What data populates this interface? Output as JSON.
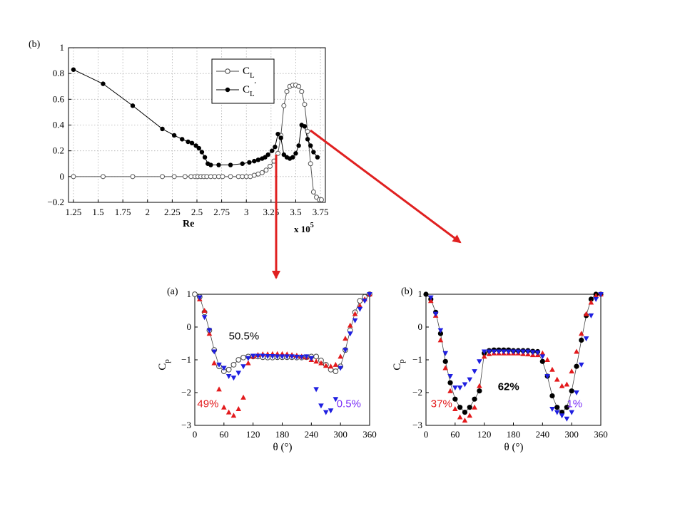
{
  "colors": {
    "annotation_red": "#e31a1c",
    "annotation_blue": "#1f1fe0",
    "annotation_purple": "#7b2ff7",
    "arrow": "#e02020",
    "grid": "#b0b0b0"
  },
  "chart_data": [
    {
      "type": "line",
      "panel_label": "(b)",
      "xlabel": "Re",
      "x_multiplier": "x 10",
      "x_multiplier_exponent": "5",
      "xlim": [
        1.2,
        3.8
      ],
      "ylim": [
        -0.2,
        1.0
      ],
      "xticks": [
        "1.25",
        "1.5",
        "1.75",
        "2",
        "2.25",
        "2.5",
        "2.75",
        "3",
        "3.25",
        "3.5",
        "3.75"
      ],
      "yticks": [
        "1",
        "0.8",
        "0.6",
        "0.4",
        "0.2",
        "0",
        "−0.2"
      ],
      "grid": true,
      "legend_position": "top-right",
      "series": [
        {
          "name": "C_L",
          "legend_main": "C",
          "legend_sub": "L",
          "marker": "open-circle",
          "x": [
            1.25,
            1.55,
            1.85,
            2.15,
            2.27,
            2.38,
            2.44,
            2.48,
            2.51,
            2.54,
            2.57,
            2.6,
            2.64,
            2.68,
            2.72,
            2.76,
            2.84,
            2.92,
            2.96,
            3.0,
            3.04,
            3.08,
            3.12,
            3.16,
            3.2,
            3.24,
            3.28,
            3.32,
            3.35,
            3.38,
            3.41,
            3.44,
            3.47,
            3.5,
            3.53,
            3.56,
            3.59,
            3.62,
            3.65,
            3.68,
            3.71,
            3.74,
            3.76
          ],
          "y": [
            0,
            0,
            0,
            0,
            0,
            0,
            0,
            0,
            0,
            0,
            0,
            0,
            0,
            0,
            0,
            0,
            0,
            0,
            0,
            0,
            0,
            0.01,
            0.02,
            0.03,
            0.05,
            0.08,
            0.12,
            0.18,
            0.32,
            0.55,
            0.66,
            0.7,
            0.71,
            0.71,
            0.7,
            0.66,
            0.56,
            0.35,
            0.1,
            -0.12,
            -0.16,
            -0.18,
            -0.18
          ]
        },
        {
          "name": "C_L'",
          "legend_main": "C",
          "legend_sub": "L",
          "legend_sup": "'",
          "marker": "filled-circle",
          "x": [
            1.25,
            1.55,
            1.85,
            2.15,
            2.27,
            2.35,
            2.41,
            2.45,
            2.49,
            2.52,
            2.55,
            2.58,
            2.61,
            2.64,
            2.72,
            2.84,
            2.96,
            3.03,
            3.08,
            3.12,
            3.16,
            3.19,
            3.22,
            3.26,
            3.29,
            3.32,
            3.35,
            3.38,
            3.41,
            3.44,
            3.47,
            3.5,
            3.53,
            3.56,
            3.59,
            3.62,
            3.65,
            3.68,
            3.72
          ],
          "y": [
            0.83,
            0.72,
            0.55,
            0.37,
            0.32,
            0.29,
            0.27,
            0.26,
            0.24,
            0.22,
            0.19,
            0.15,
            0.1,
            0.09,
            0.09,
            0.09,
            0.1,
            0.11,
            0.12,
            0.13,
            0.14,
            0.15,
            0.17,
            0.2,
            0.23,
            0.33,
            0.3,
            0.17,
            0.15,
            0.14,
            0.15,
            0.18,
            0.24,
            0.4,
            0.39,
            0.29,
            0.24,
            0.19,
            0.15
          ]
        }
      ]
    },
    {
      "type": "scatter",
      "panel_label": "(a)",
      "xlabel": "θ (°)",
      "ylabel_main": "C",
      "ylabel_sub": "p",
      "xlim": [
        0,
        360
      ],
      "ylim": [
        -3,
        1
      ],
      "xticks": [
        "0",
        "60",
        "120",
        "180",
        "240",
        "300",
        "360"
      ],
      "yticks": [
        "1",
        "0",
        "−1",
        "−2",
        "−3"
      ],
      "grid": false,
      "series": [
        {
          "marker": "open-circle",
          "x": [
            0,
            10,
            20,
            30,
            40,
            50,
            60,
            70,
            80,
            90,
            100,
            110,
            120,
            130,
            140,
            150,
            160,
            170,
            180,
            190,
            200,
            210,
            220,
            230,
            240,
            250,
            260,
            270,
            280,
            290,
            300,
            310,
            320,
            330,
            340,
            350,
            360
          ],
          "y": [
            1,
            0.92,
            0.45,
            -0.1,
            -0.7,
            -1.2,
            -1.35,
            -1.3,
            -1.15,
            -1.0,
            -0.93,
            -0.9,
            -0.9,
            -0.9,
            -0.92,
            -0.93,
            -0.93,
            -0.92,
            -0.92,
            -0.92,
            -0.92,
            -0.93,
            -0.93,
            -0.92,
            -0.9,
            -0.9,
            -1.02,
            -1.15,
            -1.3,
            -1.35,
            -1.2,
            -0.7,
            -0.1,
            0.45,
            0.8,
            0.92,
            1
          ]
        },
        {
          "marker": "red-up-triangle",
          "x": [
            10,
            20,
            30,
            40,
            50,
            60,
            70,
            80,
            90,
            100,
            110,
            120,
            130,
            140,
            150,
            160,
            170,
            180,
            190,
            200,
            210,
            220,
            230,
            240,
            250,
            260,
            270,
            280,
            290,
            300,
            310,
            320,
            330,
            340,
            350,
            360
          ],
          "y": [
            0.85,
            0.5,
            -0.2,
            -1.1,
            -1.9,
            -2.45,
            -2.6,
            -2.7,
            -2.5,
            -2.15,
            -1.1,
            -0.9,
            -0.85,
            -0.83,
            -0.83,
            -0.82,
            -0.82,
            -0.82,
            -0.83,
            -0.85,
            -0.87,
            -0.9,
            -0.92,
            -1.0,
            -1.05,
            -1.1,
            -1.18,
            -1.2,
            -1.15,
            -0.9,
            -0.35,
            0.05,
            0.4,
            0.65,
            0.85,
            1
          ]
        },
        {
          "marker": "blue-down-triangle",
          "x": [
            10,
            20,
            30,
            40,
            50,
            60,
            70,
            80,
            90,
            100,
            110,
            120,
            130,
            140,
            150,
            160,
            170,
            180,
            190,
            200,
            210,
            220,
            230,
            240,
            250,
            260,
            270,
            280,
            290,
            300,
            310,
            320,
            330,
            340,
            350,
            360
          ],
          "y": [
            0.9,
            0.3,
            -0.1,
            -0.75,
            -1.15,
            -1.25,
            -1.5,
            -1.55,
            -1.4,
            -1.2,
            -0.95,
            -0.88,
            -0.88,
            -0.88,
            -0.89,
            -0.89,
            -0.9,
            -0.9,
            -0.9,
            -0.9,
            -0.91,
            -0.91,
            -0.9,
            -0.95,
            -1.9,
            -2.4,
            -2.6,
            -2.55,
            -2.2,
            -1.25,
            -0.7,
            -0.2,
            0.2,
            0.55,
            0.8,
            1
          ]
        }
      ],
      "annotations": [
        {
          "text": "50.5%",
          "color_key": "black",
          "x": 70,
          "y": -0.38
        },
        {
          "text": "49%",
          "color_key": "red",
          "x": 5,
          "y": -2.45
        },
        {
          "text": "0.5%",
          "color_key": "purple",
          "x": 292,
          "y": -2.45
        }
      ]
    },
    {
      "type": "scatter",
      "panel_label": "(b)",
      "xlabel": "θ (°)",
      "ylabel_main": "C",
      "ylabel_sub": "p",
      "xlim": [
        0,
        360
      ],
      "ylim": [
        -3,
        1
      ],
      "xticks": [
        "0",
        "60",
        "120",
        "180",
        "240",
        "300",
        "360"
      ],
      "yticks": [
        "1",
        "0",
        "−1",
        "−2",
        "−3"
      ],
      "grid": false,
      "series": [
        {
          "marker": "black-filled-circle",
          "x": [
            0,
            10,
            20,
            30,
            40,
            50,
            60,
            70,
            80,
            90,
            100,
            110,
            120,
            130,
            140,
            150,
            160,
            170,
            180,
            190,
            200,
            210,
            220,
            230,
            240,
            250,
            260,
            270,
            280,
            290,
            300,
            310,
            320,
            330,
            340,
            350,
            360
          ],
          "y": [
            1,
            0.85,
            0.45,
            -0.2,
            -1.05,
            -1.7,
            -2.2,
            -2.45,
            -2.6,
            -2.45,
            -2.2,
            -1.95,
            -0.8,
            -0.72,
            -0.7,
            -0.7,
            -0.7,
            -0.7,
            -0.72,
            -0.72,
            -0.72,
            -0.72,
            -0.74,
            -0.75,
            -1.05,
            -1.5,
            -2.1,
            -2.45,
            -2.6,
            -2.45,
            -1.95,
            -1.2,
            -0.4,
            0.35,
            0.85,
            1,
            1
          ]
        },
        {
          "marker": "red-up-triangle",
          "x": [
            10,
            20,
            30,
            40,
            50,
            60,
            70,
            80,
            90,
            100,
            110,
            120,
            130,
            140,
            150,
            160,
            170,
            180,
            190,
            200,
            210,
            220,
            230,
            240,
            250,
            260,
            270,
            280,
            290,
            300,
            310,
            320,
            330,
            340,
            350,
            360
          ],
          "y": [
            0.8,
            0.35,
            -0.4,
            -1.25,
            -1.95,
            -2.5,
            -2.75,
            -2.85,
            -2.7,
            -2.45,
            -1.8,
            -0.9,
            -0.82,
            -0.8,
            -0.8,
            -0.8,
            -0.8,
            -0.8,
            -0.8,
            -0.82,
            -0.83,
            -0.85,
            -0.85,
            -0.8,
            -1.0,
            -1.3,
            -1.6,
            -1.8,
            -1.75,
            -1.35,
            -0.75,
            -0.2,
            0.4,
            0.75,
            0.95,
            1
          ]
        },
        {
          "marker": "blue-down-triangle",
          "x": [
            10,
            20,
            30,
            40,
            50,
            60,
            70,
            80,
            90,
            100,
            110,
            120,
            130,
            140,
            150,
            160,
            170,
            180,
            190,
            200,
            210,
            220,
            230,
            240,
            250,
            260,
            270,
            280,
            290,
            300,
            310,
            320,
            330,
            340,
            350,
            360
          ],
          "y": [
            0.9,
            0.4,
            -0.1,
            -0.8,
            -1.5,
            -1.85,
            -1.85,
            -1.75,
            -1.6,
            -1.35,
            -1.05,
            -0.75,
            -0.75,
            -0.75,
            -0.75,
            -0.75,
            -0.75,
            -0.75,
            -0.75,
            -0.75,
            -0.75,
            -0.77,
            -0.78,
            -0.9,
            -1.5,
            -2.5,
            -2.6,
            -2.7,
            -2.8,
            -2.6,
            -2.0,
            -1.15,
            -0.35,
            0.35,
            0.85,
            1
          ]
        }
      ],
      "annotations": [
        {
          "text": "62%",
          "color_key": "black",
          "x": 148,
          "y": -1.92
        },
        {
          "text": "37%",
          "color_key": "red",
          "x": 10,
          "y": -2.45
        },
        {
          "text": "1%",
          "color_key": "purple",
          "x": 290,
          "y": -2.45
        }
      ]
    }
  ]
}
